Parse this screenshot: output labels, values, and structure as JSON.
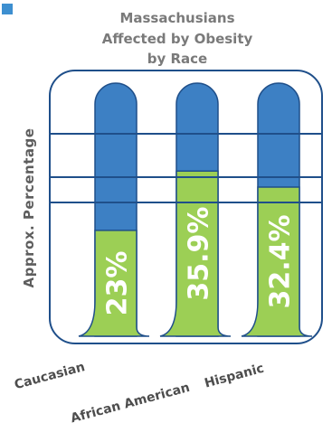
{
  "chart_data": {
    "type": "bar",
    "title": [
      "Massachusians",
      "Affected by Obesity",
      "by Race"
    ],
    "ylabel": "Approx. Percentage",
    "categories": [
      "Caucasian",
      "African American",
      "Hispanic"
    ],
    "values": [
      23,
      35.9,
      32.4
    ],
    "value_labels": [
      "23%",
      "35.9%",
      "32.4%"
    ],
    "ylim": [
      0,
      55
    ],
    "colors": {
      "fill": "#9ccf55",
      "remainder": "#3d80c4",
      "outline": "#1f4f8a",
      "accent_square": "#3d8fd0",
      "title_text": "#7a7a7a",
      "axis_text": "#5e5e5e"
    }
  }
}
